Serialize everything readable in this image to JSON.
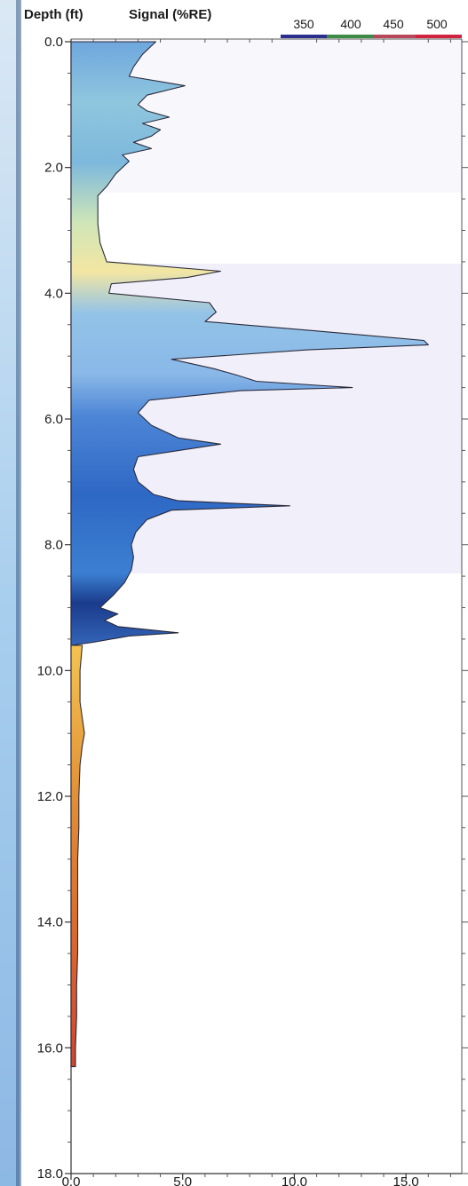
{
  "chart_data": {
    "type": "area",
    "title": "",
    "header": {
      "depth_label": "Depth (ft)",
      "signal_label": "Signal (%RE)"
    },
    "legend": {
      "placement": "top-right",
      "items": [
        {
          "label": "350",
          "color": "#2b2f8c"
        },
        {
          "label": "400",
          "color": "#3c8a46"
        },
        {
          "label": "450",
          "color": "#b8475a"
        },
        {
          "label": "500",
          "color": "#d0233f"
        }
      ]
    },
    "y_axis": {
      "label": "Depth (ft)",
      "range": [
        0,
        18
      ],
      "inverted": true,
      "ticks": [
        "0.0",
        "2.0",
        "4.0",
        "6.0",
        "8.0",
        "10.0",
        "12.0",
        "14.0",
        "16.0",
        "18.0"
      ]
    },
    "x_axis": {
      "label": "Signal (%RE)",
      "range": [
        0,
        17.5
      ],
      "ticks": [
        "0.0",
        "5.0",
        "10.0",
        "15.0"
      ]
    },
    "series": [
      {
        "depth": [
          0.0,
          0.2,
          0.4,
          0.55,
          0.7,
          0.85,
          1.0,
          1.1,
          1.2,
          1.3,
          1.4,
          1.5,
          1.6,
          1.7,
          1.8,
          1.9,
          2.1,
          2.3,
          2.45,
          2.6,
          2.9,
          3.2,
          3.5,
          3.65,
          3.75,
          3.85,
          4.0,
          4.15,
          4.3,
          4.45,
          4.6,
          4.75,
          4.82,
          4.9,
          5.05,
          5.2,
          5.3,
          5.4,
          5.5,
          5.55,
          5.7,
          5.9,
          6.1,
          6.3,
          6.4,
          6.6,
          6.8,
          7.0,
          7.2,
          7.3,
          7.38,
          7.45,
          7.6,
          7.8,
          8.0,
          8.2,
          8.4,
          8.6,
          8.8,
          9.0,
          9.1,
          9.2,
          9.3,
          9.4,
          9.45,
          9.55,
          9.6
        ],
        "signal": [
          3.8,
          3.2,
          2.8,
          2.6,
          5.1,
          3.4,
          3.0,
          3.4,
          4.4,
          3.2,
          4.0,
          3.6,
          2.8,
          3.6,
          2.3,
          2.6,
          2.0,
          1.6,
          1.2,
          1.2,
          1.2,
          1.3,
          1.6,
          6.7,
          5.2,
          1.8,
          1.7,
          6.2,
          6.5,
          6.0,
          11.0,
          15.8,
          16.0,
          10.6,
          4.5,
          6.4,
          7.4,
          8.3,
          12.6,
          7.6,
          3.5,
          3.0,
          3.6,
          4.8,
          6.7,
          3.0,
          2.8,
          3.0,
          3.7,
          4.8,
          9.8,
          4.5,
          3.4,
          2.9,
          2.7,
          2.8,
          2.7,
          2.4,
          1.9,
          1.3,
          2.1,
          1.5,
          2.1,
          4.8,
          2.6,
          1.0,
          0.0
        ]
      },
      {
        "depth": [
          9.6,
          10.0,
          10.5,
          11.0,
          11.2,
          11.5,
          12.0,
          12.5,
          13.0,
          13.5,
          14.0,
          14.5,
          15.0,
          15.5,
          16.0,
          16.3
        ],
        "signal": [
          0.5,
          0.4,
          0.4,
          0.6,
          0.5,
          0.4,
          0.35,
          0.35,
          0.3,
          0.3,
          0.3,
          0.3,
          0.25,
          0.25,
          0.2,
          0.2
        ]
      }
    ]
  }
}
